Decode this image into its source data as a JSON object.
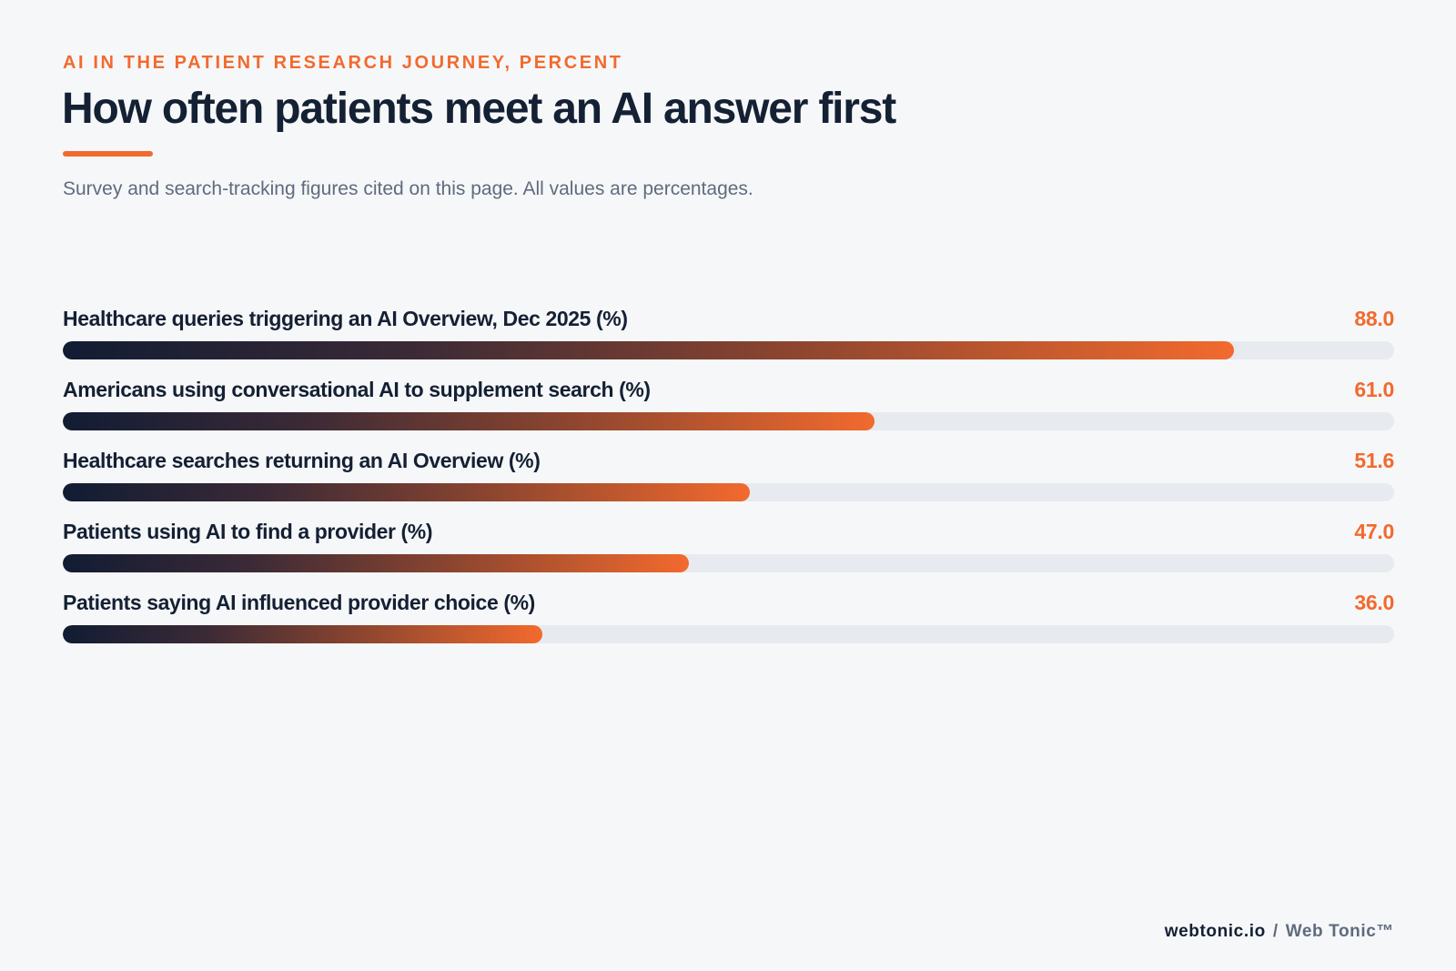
{
  "header": {
    "kicker": "AI IN THE PATIENT RESEARCH JOURNEY, PERCENT",
    "title": "How often patients meet an AI answer first",
    "subtitle": "Survey and search-tracking figures cited on this page. All values are percentages."
  },
  "footer": {
    "domain": "webtonic.io",
    "separator": "/",
    "brand": "Web Tonic™"
  },
  "colors": {
    "accent": "#f26a2e",
    "ink": "#142033",
    "track": "#e7eaee",
    "gradient_start": "#111c33"
  },
  "chart_data": {
    "type": "bar",
    "orientation": "horizontal",
    "xlim": [
      0,
      100
    ],
    "categories": [
      "Healthcare queries triggering an AI Overview, Dec 2025 (%)",
      "Americans using conversational AI to supplement search (%)",
      "Healthcare searches returning an AI Overview (%)",
      "Patients using AI to find a provider (%)",
      "Patients saying AI influenced provider choice (%)"
    ],
    "values": [
      88.0,
      61.0,
      51.6,
      47.0,
      36.0
    ],
    "value_labels": [
      "88.0",
      "61.0",
      "51.6",
      "47.0",
      "36.0"
    ],
    "grid": false,
    "legend": "none"
  }
}
